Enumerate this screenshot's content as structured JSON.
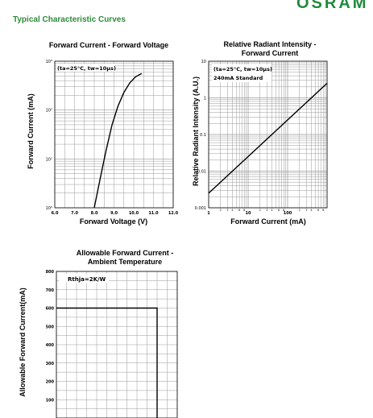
{
  "header": {
    "section_title": "Typical Characteristic Curves",
    "brand_text": "OSRAM"
  },
  "colors": {
    "accent": "#2e8b3a",
    "line": "#000000",
    "grid": "#9a9a9a"
  },
  "chart_data": [
    {
      "type": "line",
      "title_lines": [
        "Forward Current - Forward Voltage"
      ],
      "xlabel": "Forward Voltage (V)",
      "ylabel": "Forward Current (mA)",
      "annotation": "(ta=25°C, tw=10µs)",
      "xscale": "linear",
      "yscale": "log",
      "xlim": [
        6.0,
        12.0
      ],
      "ylim": [
        1,
        1000
      ],
      "x_ticks": [
        "6.0",
        "7.0",
        "8.0",
        "9.0",
        "10.0",
        "11.0",
        "12.0"
      ],
      "y_ticks": [
        "10⁰",
        "10¹",
        "10²",
        "10³"
      ],
      "series": [
        {
          "x": [
            8.0,
            8.3,
            8.6,
            8.9,
            9.2,
            9.5,
            9.8,
            10.1,
            10.4
          ],
          "y": [
            1,
            4,
            15,
            50,
            120,
            230,
            360,
            480,
            560
          ]
        }
      ],
      "grid": true
    },
    {
      "type": "line",
      "title_lines": [
        "Relative Radiant Intensity -",
        "Forward Current"
      ],
      "xlabel": "Forward Current (mA)",
      "ylabel": "Relative Radiant Intensity (A.U.)",
      "annotation": "(ta=25°C, tw=10µs)",
      "annotation2": "240mA Standard",
      "xscale": "log",
      "yscale": "log",
      "xlim": [
        1,
        1000
      ],
      "ylim": [
        0.001,
        10
      ],
      "x_ticks": [
        "1",
        "10",
        "100"
      ],
      "y_ticks": [
        "0.001",
        "0.01",
        "0.1",
        "1",
        "10"
      ],
      "x_minor_labels": [
        "2",
        "3",
        "4",
        "6",
        "8"
      ],
      "series": [
        {
          "x": [
            1,
            1000
          ],
          "y": [
            0.0025,
            2.5
          ]
        }
      ],
      "grid": true
    },
    {
      "type": "line",
      "title_lines": [
        "Allowable Forward Current -",
        "Ambient Temperature"
      ],
      "xlabel": "",
      "ylabel": "Allowable Forward Current(mA)",
      "annotation": "Rthja=2K/W",
      "xscale": "linear",
      "yscale": "linear",
      "xlim": [
        0,
        120
      ],
      "ylim": [
        0,
        800
      ],
      "y_ticks": [
        "100",
        "200",
        "300",
        "400",
        "500",
        "600",
        "700",
        "800"
      ],
      "series": [
        {
          "x": [
            0,
            100,
            100
          ],
          "y": [
            600,
            600,
            0
          ]
        }
      ],
      "grid": true
    }
  ]
}
